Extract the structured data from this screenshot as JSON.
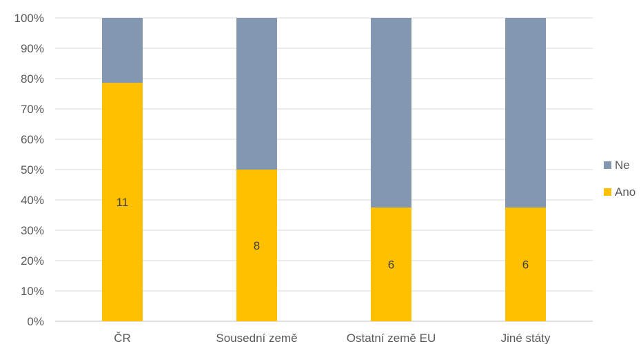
{
  "chart_data": {
    "type": "bar",
    "stacked": true,
    "percent": true,
    "categories": [
      "ČR",
      "Sousední země",
      "Ostatní země EU",
      "Jiné státy"
    ],
    "series": [
      {
        "name": "Ano",
        "color": "#FFC000",
        "values": [
          11,
          8,
          6,
          6
        ],
        "shares": [
          0.786,
          0.5,
          0.375,
          0.375
        ]
      },
      {
        "name": "Ne",
        "color": "#8497B0",
        "values_share": [
          0.214,
          0.5,
          0.625,
          0.625
        ]
      }
    ],
    "y_ticks": [
      "0%",
      "10%",
      "20%",
      "30%",
      "40%",
      "50%",
      "60%",
      "70%",
      "80%",
      "90%",
      "100%"
    ],
    "ylim": [
      0,
      1
    ],
    "grid": true,
    "legend": {
      "position": "right",
      "entries": [
        "Ne",
        "Ano"
      ]
    }
  }
}
